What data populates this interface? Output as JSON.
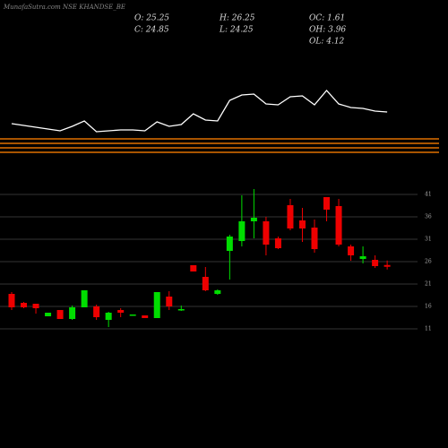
{
  "chart_data": {
    "type": "candlestick",
    "title": "MunafaSutra.com NSE KHANDSE_BE",
    "stats": [
      "O: 25.25",
      "H: 26.25",
      "OC: 1.61",
      "C: 24.85",
      "L: 24.25",
      "OH: 3.96",
      "OL: 4.12"
    ],
    "up_color": "#00dd00",
    "down_color": "#ee0000",
    "ylim": [
      11,
      41
    ],
    "yticks": [
      11,
      16,
      21,
      26,
      31,
      36,
      41
    ],
    "grid": true,
    "open": [
      18.8,
      16.8,
      16.6,
      13.8,
      15.2,
      13.2,
      15.8,
      16.0,
      13.0,
      15.2,
      14.0,
      14.0,
      13.4,
      18.2,
      15.2,
      25.2,
      22.6,
      18.8,
      28.4,
      30.6,
      35.0,
      35.0,
      31.2,
      38.6,
      35.2,
      33.6,
      40.4,
      38.4,
      29.4,
      26.6,
      26.4,
      25.25
    ],
    "high": [
      19.2,
      17.0,
      16.6,
      14.6,
      15.2,
      16.2,
      19.6,
      16.4,
      14.8,
      15.6,
      14.2,
      14.0,
      19.2,
      19.4,
      16.2,
      25.2,
      24.8,
      19.8,
      32.0,
      40.8,
      42.2,
      36.0,
      31.6,
      40.0,
      38.0,
      35.4,
      40.4,
      40.0,
      29.8,
      29.4,
      27.4,
      26.25
    ],
    "low": [
      15.2,
      15.6,
      14.4,
      13.8,
      13.2,
      13.0,
      15.8,
      13.0,
      11.4,
      13.6,
      14.0,
      13.4,
      13.4,
      15.2,
      15.0,
      23.8,
      19.4,
      18.6,
      22.0,
      29.4,
      31.2,
      27.4,
      28.8,
      33.0,
      30.4,
      28.0,
      35.0,
      29.4,
      26.2,
      25.6,
      24.6,
      24.25
    ],
    "close": [
      15.8,
      15.8,
      15.6,
      14.6,
      13.2,
      15.8,
      19.6,
      13.6,
      14.6,
      14.6,
      14.2,
      13.4,
      19.2,
      16.0,
      15.4,
      23.8,
      19.6,
      19.6,
      31.6,
      35.0,
      35.8,
      29.8,
      29.0,
      33.4,
      33.4,
      28.8,
      37.6,
      29.8,
      27.4,
      27.2,
      25.0,
      24.85
    ],
    "indicator": {
      "color": "#ffffff",
      "ylim": [
        0,
        100
      ],
      "values": [
        32,
        30,
        28,
        26,
        24,
        29,
        35,
        23,
        24,
        25,
        25,
        24,
        34,
        29,
        31,
        43,
        36,
        35,
        58,
        64,
        65,
        54,
        53,
        62,
        63,
        53,
        69,
        54,
        50,
        49,
        46,
        45
      ]
    }
  }
}
